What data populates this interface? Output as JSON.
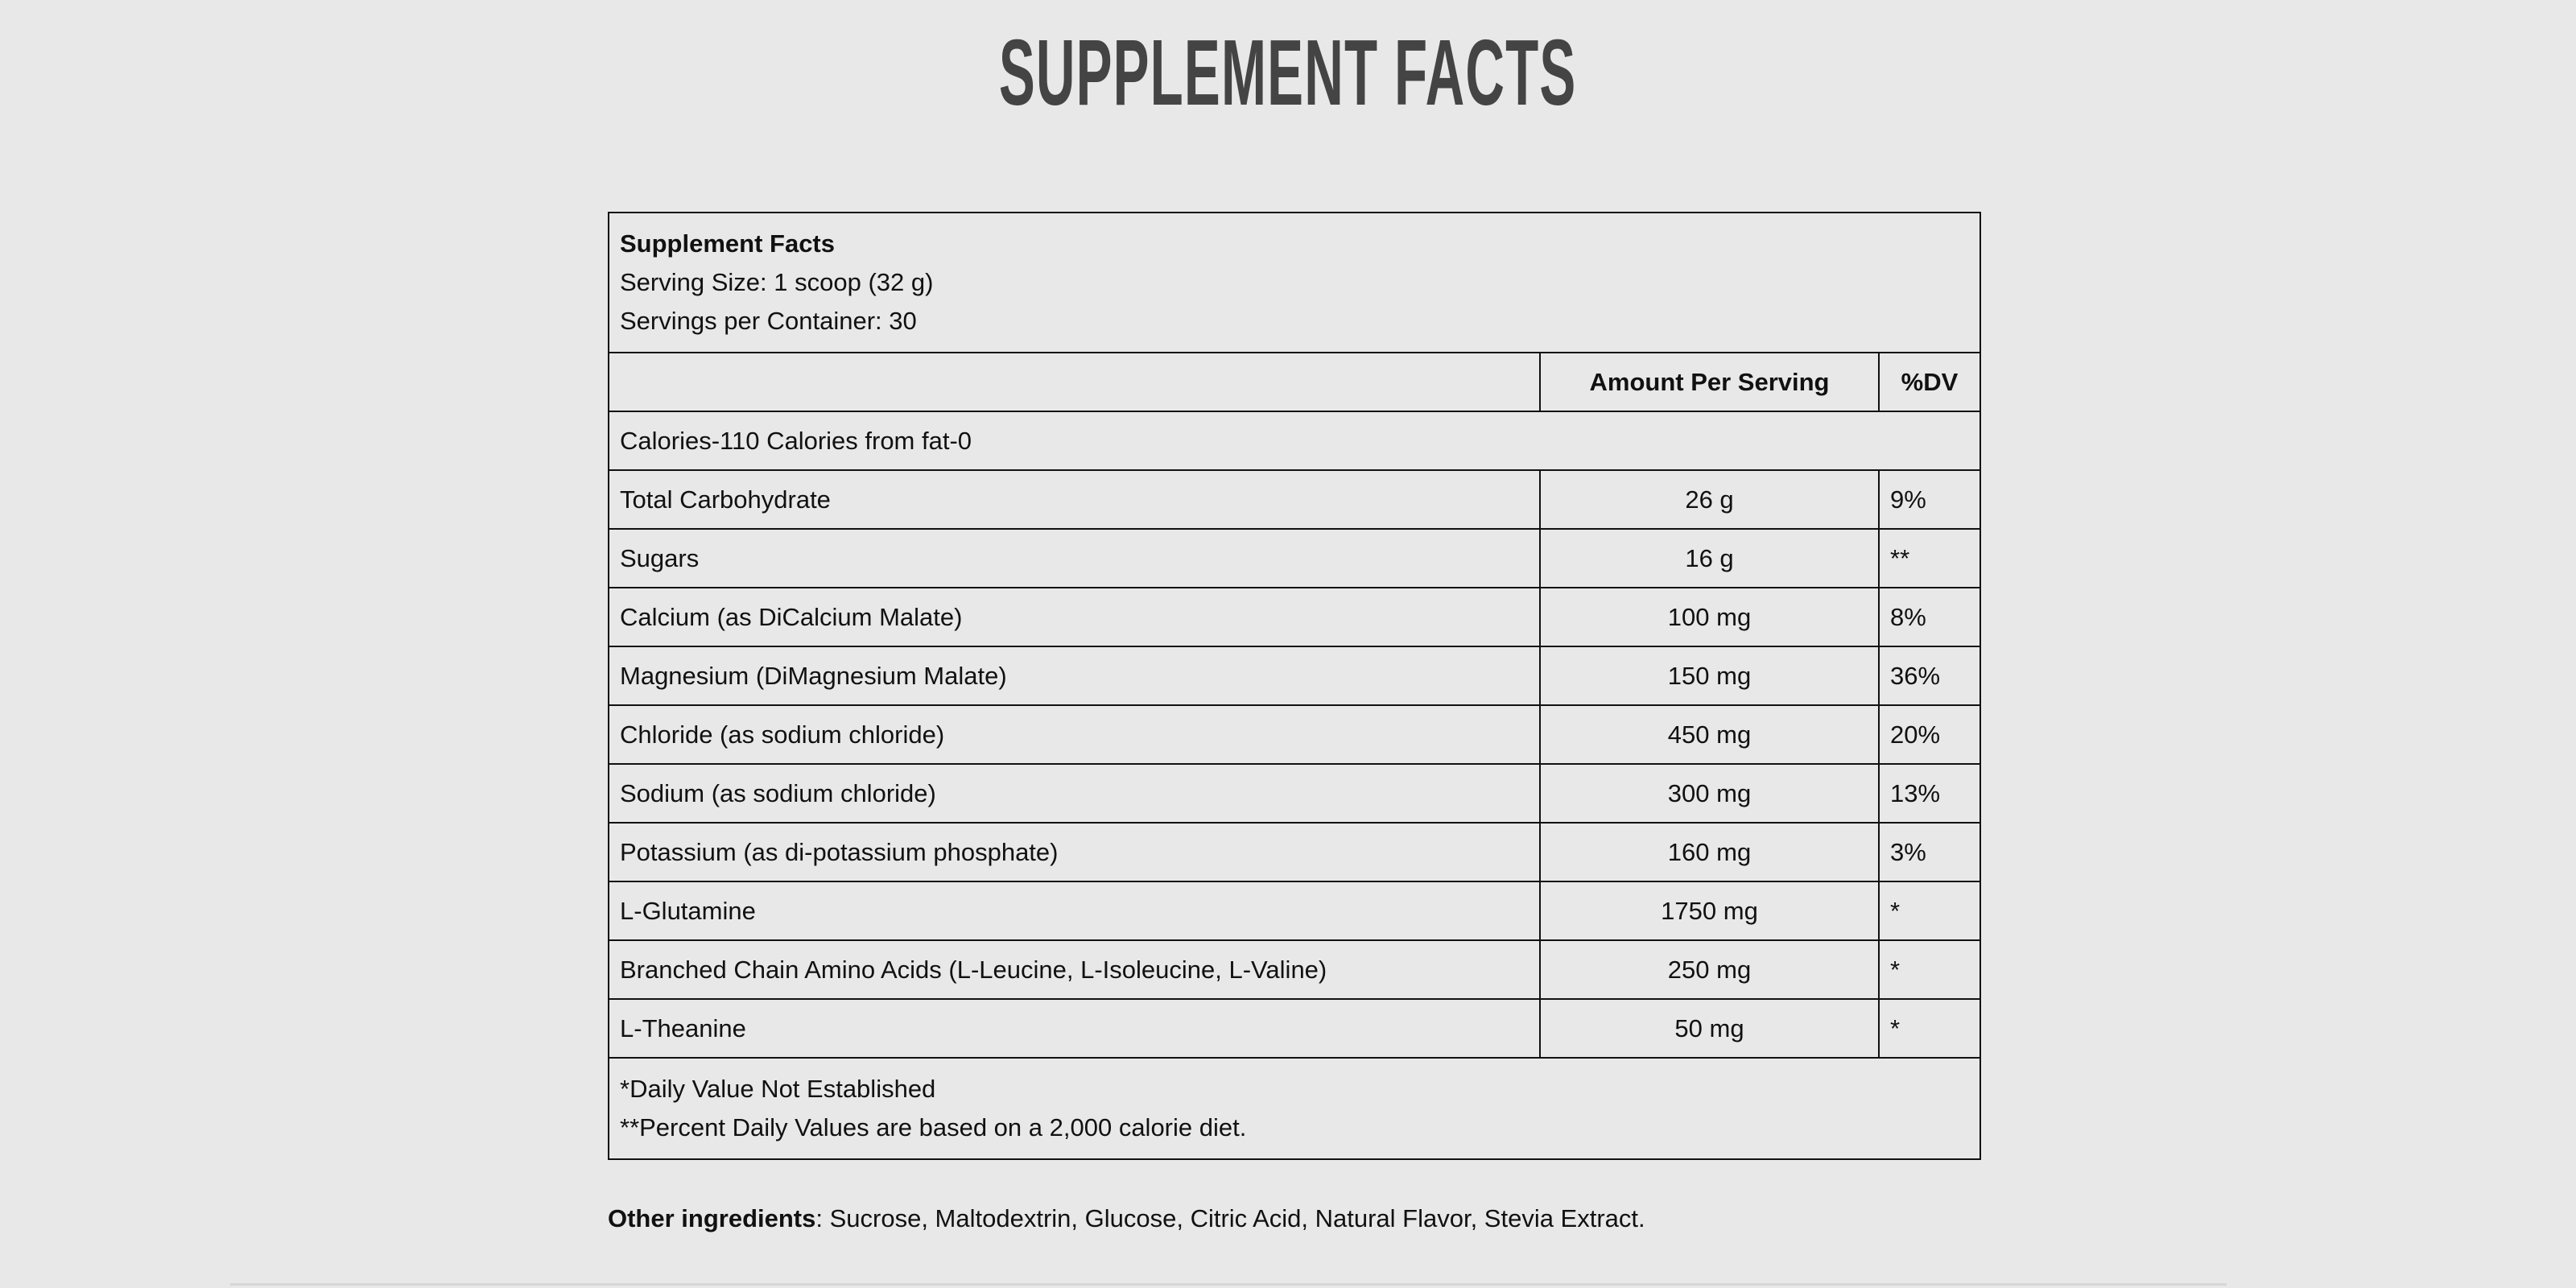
{
  "page_title": "SUPPLEMENT FACTS",
  "label": {
    "heading": "Supplement Facts",
    "serving_size": "Serving Size: 1 scoop (32 g)",
    "servings_per_container": "Servings per Container: 30",
    "columns": {
      "amount": "Amount Per Serving",
      "dv": "%DV"
    },
    "calories": "Calories-110 Calories from fat-0",
    "rows": [
      {
        "name": "Total Carbohydrate",
        "amount": "26 g",
        "dv": "9%"
      },
      {
        "name": "Sugars",
        "amount": "16 g",
        "dv": "**"
      },
      {
        "name": "Calcium (as DiCalcium Malate)",
        "amount": "100 mg",
        "dv": "8%"
      },
      {
        "name": "Magnesium (DiMagnesium Malate)",
        "amount": "150 mg",
        "dv": "36%"
      },
      {
        "name": "Chloride (as sodium chloride)",
        "amount": "450 mg",
        "dv": "20%"
      },
      {
        "name": "Sodium (as sodium chloride)",
        "amount": "300 mg",
        "dv": "13%"
      },
      {
        "name": "Potassium (as di-potassium phosphate)",
        "amount": "160 mg",
        "dv": "3%"
      },
      {
        "name": "L-Glutamine",
        "amount": "1750 mg",
        "dv": "*"
      },
      {
        "name": "Branched Chain Amino Acids (L-Leucine, L-Isoleucine, L-Valine)",
        "amount": "250 mg",
        "dv": "*"
      },
      {
        "name": "L-Theanine",
        "amount": "50 mg",
        "dv": "*"
      }
    ],
    "footnote_1": "*Daily Value Not Established",
    "footnote_2": "**Percent Daily Values are based on a 2,000 calorie diet."
  },
  "other_ingredients": {
    "label": "Other ingredients",
    "text": ": Sucrose, Maltodextrin, Glucose, Citric Acid, Natural Flavor, Stevia Extract."
  }
}
